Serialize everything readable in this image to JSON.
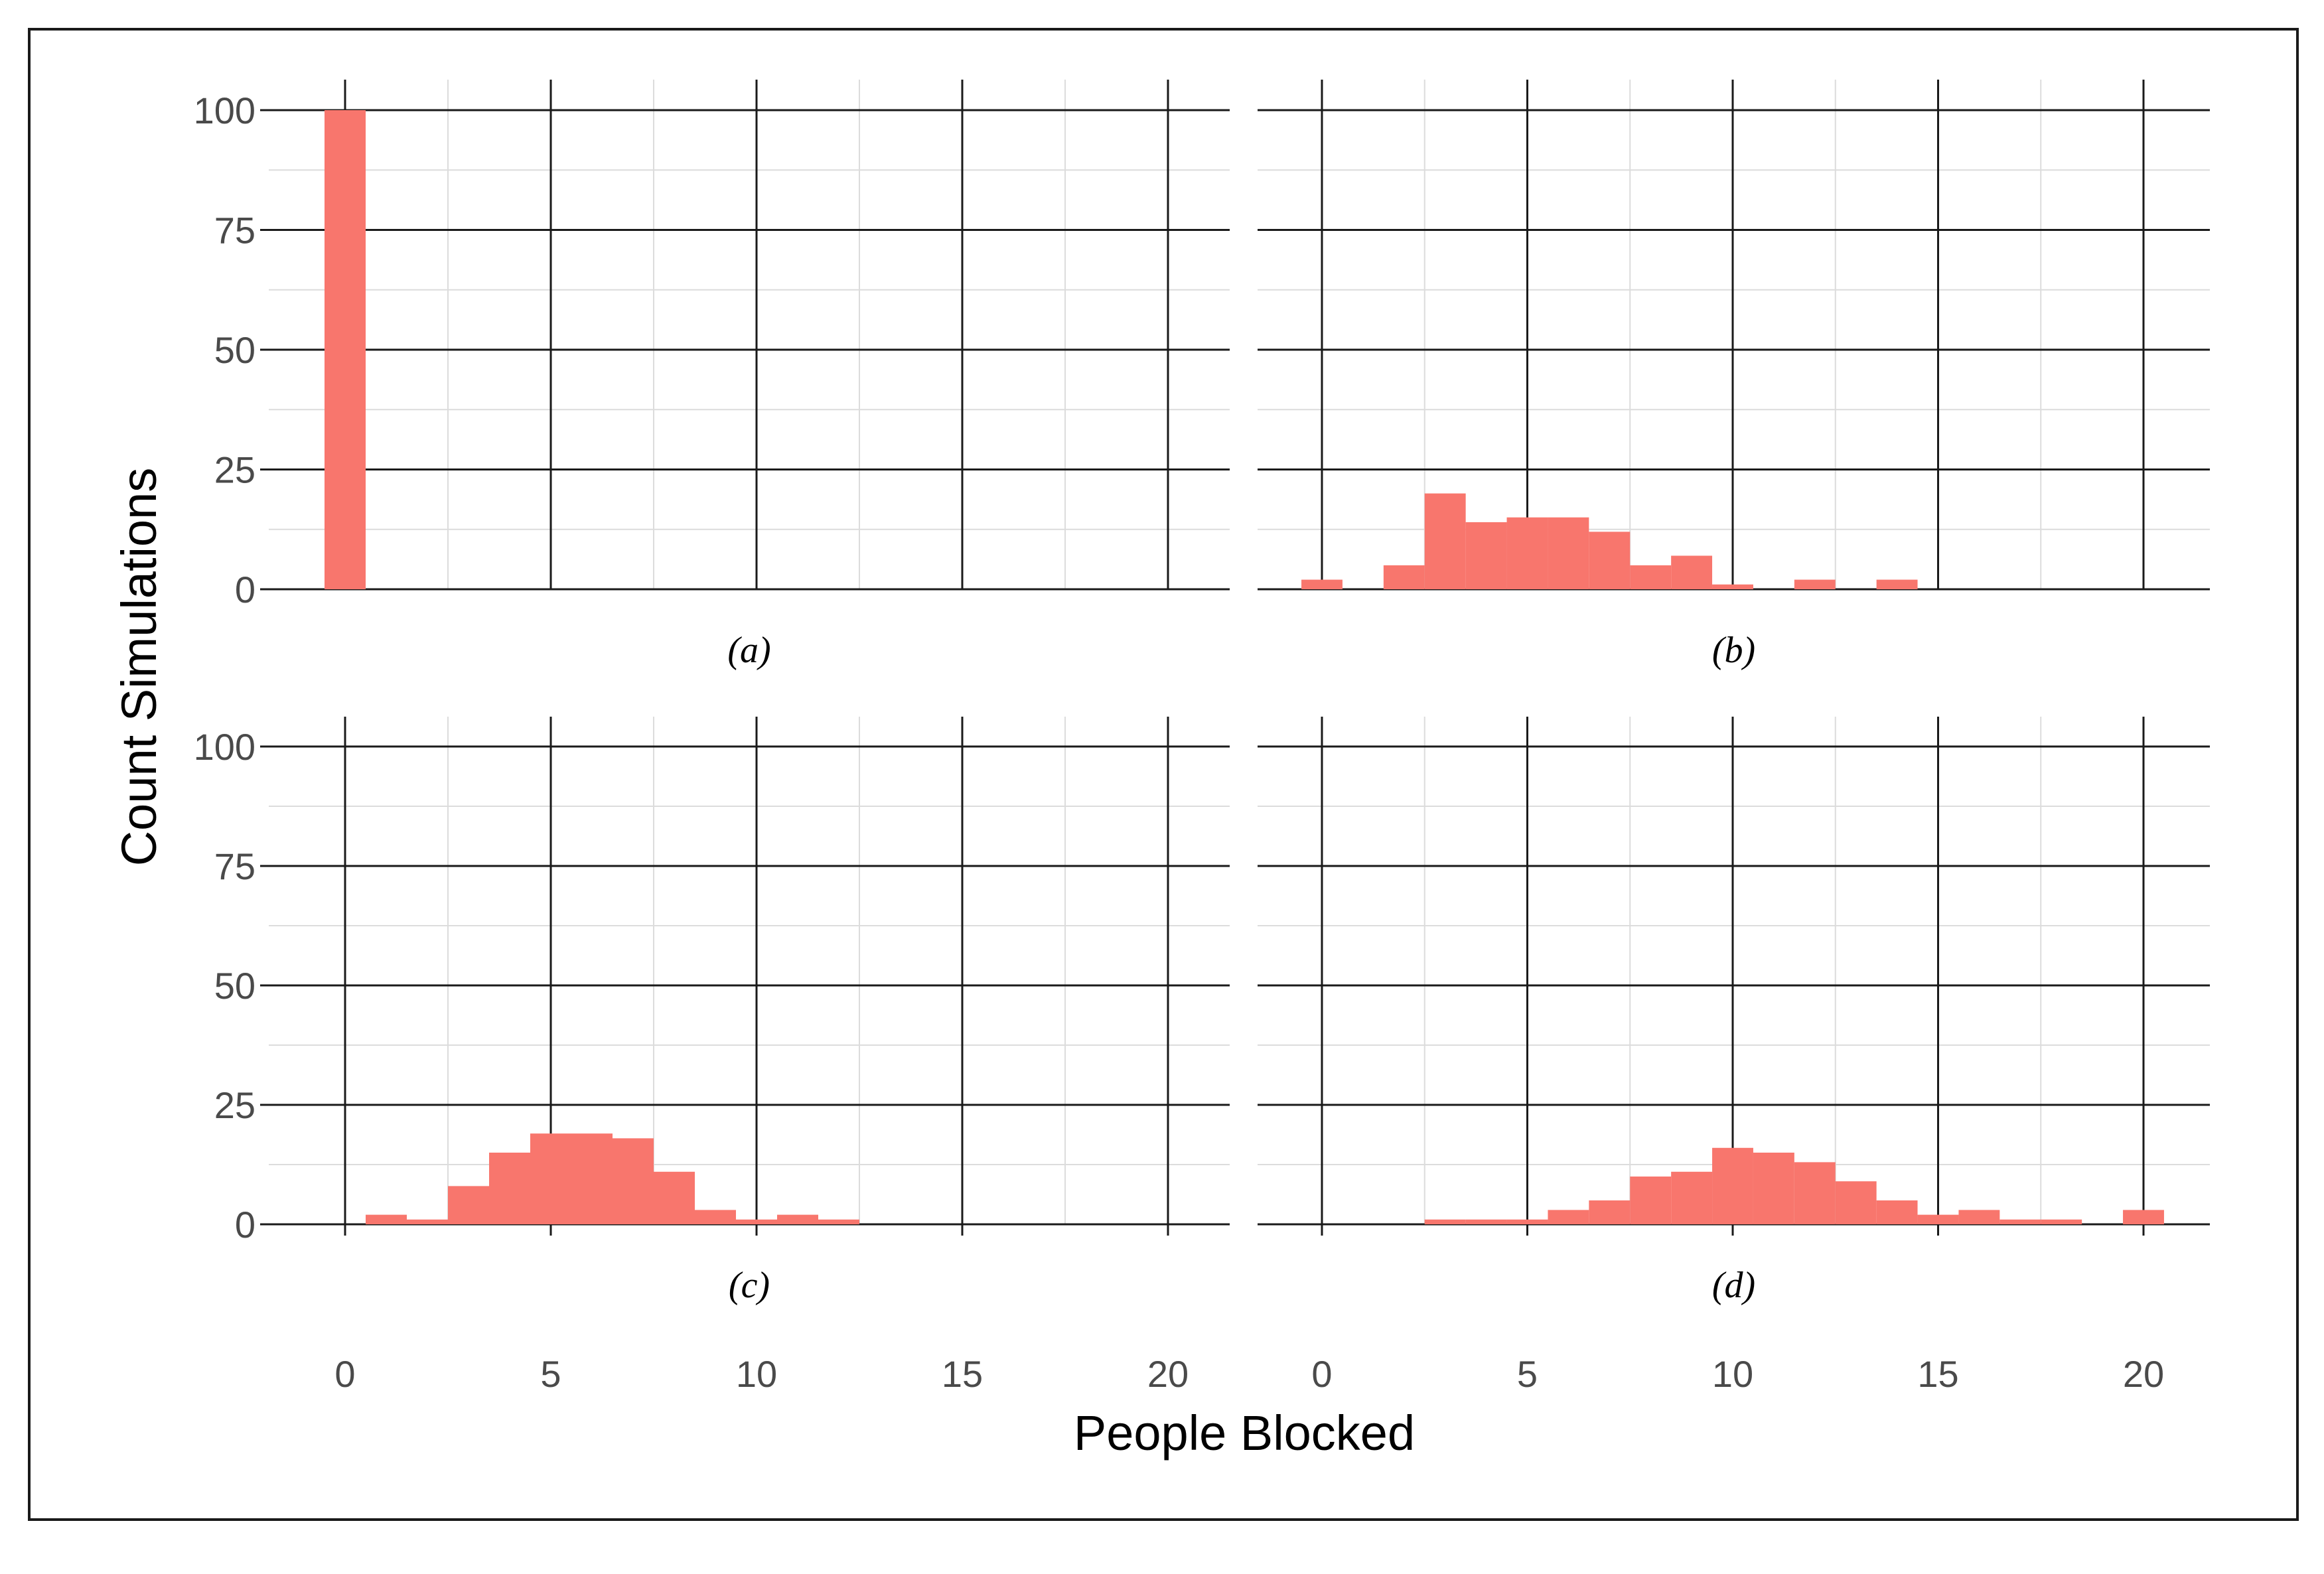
{
  "colors": {
    "bar": "#f8766d",
    "major_grid": "#1a1a1a",
    "minor_grid": "#dcdcdc",
    "tick_text": "#4a4a4a"
  },
  "chart_data": {
    "type": "bar",
    "layout": "2x2 facets, shared axes",
    "xlabel": "People Blocked",
    "ylabel": "Count Simulations",
    "xlim": [
      -0.5,
      20.5
    ],
    "ylim": [
      0,
      100
    ],
    "x_ticks": [
      0,
      5,
      10,
      15,
      20
    ],
    "y_ticks": [
      0,
      25,
      50,
      75,
      100
    ],
    "x_tick_labels": [
      "0",
      "5",
      "10",
      "15",
      "20"
    ],
    "y_tick_labels": [
      "0",
      "25",
      "50",
      "75",
      "100"
    ],
    "bin_width": 1,
    "grid": true,
    "legend": "none",
    "panels": [
      {
        "label": "(a)",
        "x": [
          0
        ],
        "values": [
          100
        ]
      },
      {
        "label": "(b)",
        "x": [
          0,
          1,
          2,
          3,
          4,
          5,
          6,
          7,
          8,
          9,
          10,
          11,
          12,
          13,
          14
        ],
        "values": [
          2,
          0,
          5,
          20,
          14,
          15,
          15,
          12,
          5,
          7,
          1,
          0,
          2,
          0,
          2
        ]
      },
      {
        "label": "(c)",
        "x": [
          1,
          2,
          3,
          4,
          5,
          6,
          7,
          8,
          9,
          10,
          11,
          12
        ],
        "values": [
          2,
          1,
          8,
          15,
          19,
          19,
          18,
          11,
          3,
          1,
          2,
          1
        ]
      },
      {
        "label": "(d)",
        "x": [
          3,
          4,
          5,
          6,
          7,
          8,
          9,
          10,
          11,
          12,
          13,
          14,
          15,
          16,
          17,
          18,
          19,
          20
        ],
        "values": [
          1,
          1,
          1,
          3,
          5,
          10,
          11,
          16,
          15,
          13,
          9,
          5,
          2,
          3,
          1,
          1,
          0,
          3
        ]
      }
    ]
  }
}
